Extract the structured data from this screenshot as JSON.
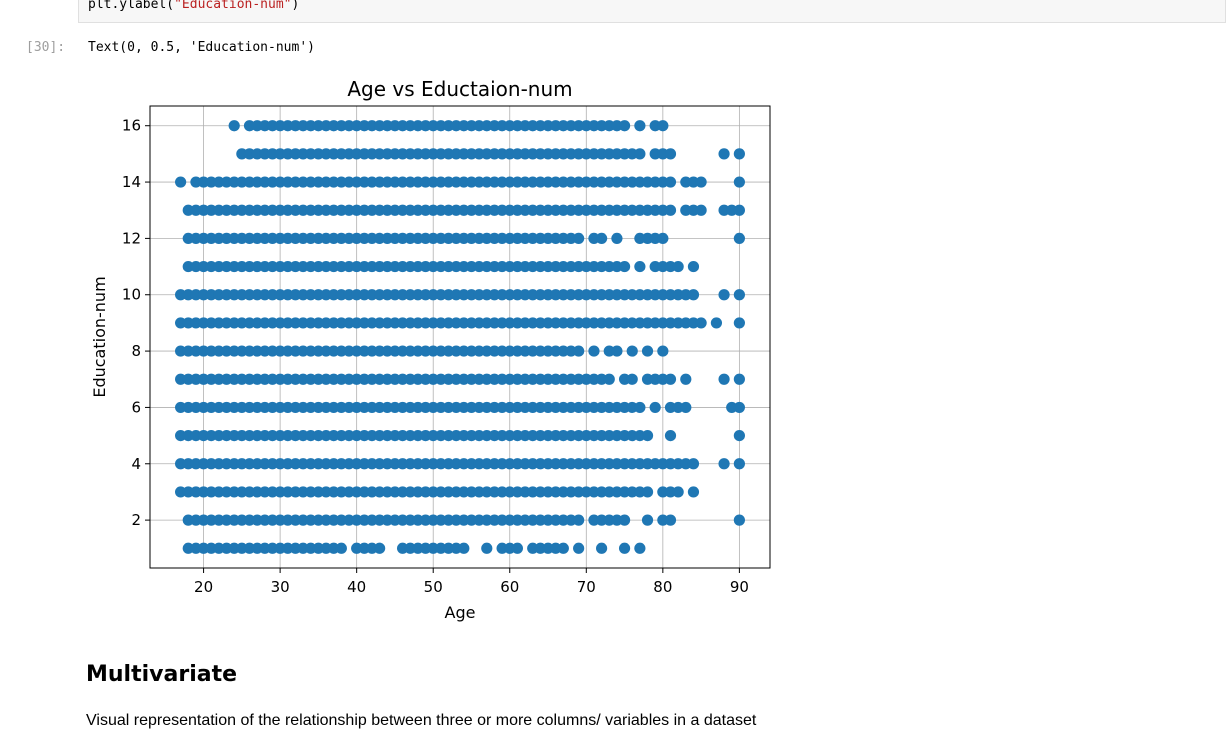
{
  "code_cell": {
    "line": {
      "prefix": "plt.ylabel(",
      "string": "\"Education-num\"",
      "suffix": ")"
    }
  },
  "output": {
    "prompt": "[30]:",
    "text": "Text(0, 0.5, 'Education-num')"
  },
  "chart_data": {
    "type": "scatter",
    "title": "Age vs Eductaion-num",
    "xlabel": "Age",
    "ylabel": "Education-num",
    "xlim": [
      13,
      94
    ],
    "ylim": [
      0.3,
      16.7
    ],
    "xticks": [
      20,
      30,
      40,
      50,
      60,
      70,
      80,
      90
    ],
    "yticks": [
      2,
      4,
      6,
      8,
      10,
      12,
      14,
      16
    ],
    "grid": true,
    "marker_color": "#1f77b4",
    "rows": [
      {
        "y": 16,
        "x": [
          24,
          26,
          27,
          28,
          29,
          30,
          31,
          32,
          33,
          34,
          35,
          36,
          37,
          38,
          39,
          40,
          41,
          42,
          43,
          44,
          45,
          46,
          47,
          48,
          49,
          50,
          51,
          52,
          53,
          54,
          55,
          56,
          57,
          58,
          59,
          60,
          61,
          62,
          63,
          64,
          65,
          66,
          67,
          68,
          69,
          70,
          71,
          72,
          73,
          74,
          75,
          77,
          79,
          80
        ]
      },
      {
        "y": 15,
        "x": [
          25,
          26,
          27,
          28,
          29,
          30,
          31,
          32,
          33,
          34,
          35,
          36,
          37,
          38,
          39,
          40,
          41,
          42,
          43,
          44,
          45,
          46,
          47,
          48,
          49,
          50,
          51,
          52,
          53,
          54,
          55,
          56,
          57,
          58,
          59,
          60,
          61,
          62,
          63,
          64,
          65,
          66,
          67,
          68,
          69,
          70,
          71,
          72,
          73,
          74,
          75,
          76,
          77,
          79,
          80,
          81,
          88,
          90
        ]
      },
      {
        "y": 14,
        "x": [
          17,
          19,
          20,
          21,
          22,
          23,
          24,
          25,
          26,
          27,
          28,
          29,
          30,
          31,
          32,
          33,
          34,
          35,
          36,
          37,
          38,
          39,
          40,
          41,
          42,
          43,
          44,
          45,
          46,
          47,
          48,
          49,
          50,
          51,
          52,
          53,
          54,
          55,
          56,
          57,
          58,
          59,
          60,
          61,
          62,
          63,
          64,
          65,
          66,
          67,
          68,
          69,
          70,
          71,
          72,
          73,
          74,
          75,
          76,
          77,
          78,
          79,
          80,
          81,
          83,
          84,
          85,
          90
        ]
      },
      {
        "y": 13,
        "x": [
          18,
          19,
          20,
          21,
          22,
          23,
          24,
          25,
          26,
          27,
          28,
          29,
          30,
          31,
          32,
          33,
          34,
          35,
          36,
          37,
          38,
          39,
          40,
          41,
          42,
          43,
          44,
          45,
          46,
          47,
          48,
          49,
          50,
          51,
          52,
          53,
          54,
          55,
          56,
          57,
          58,
          59,
          60,
          61,
          62,
          63,
          64,
          65,
          66,
          67,
          68,
          69,
          70,
          71,
          72,
          73,
          74,
          75,
          76,
          77,
          78,
          79,
          80,
          81,
          83,
          84,
          85,
          88,
          89,
          90
        ]
      },
      {
        "y": 12,
        "x": [
          18,
          19,
          20,
          21,
          22,
          23,
          24,
          25,
          26,
          27,
          28,
          29,
          30,
          31,
          32,
          33,
          34,
          35,
          36,
          37,
          38,
          39,
          40,
          41,
          42,
          43,
          44,
          45,
          46,
          47,
          48,
          49,
          50,
          51,
          52,
          53,
          54,
          55,
          56,
          57,
          58,
          59,
          60,
          61,
          62,
          63,
          64,
          65,
          66,
          67,
          68,
          69,
          71,
          72,
          74,
          77,
          78,
          79,
          80,
          90
        ]
      },
      {
        "y": 11,
        "x": [
          18,
          19,
          20,
          21,
          22,
          23,
          24,
          25,
          26,
          27,
          28,
          29,
          30,
          31,
          32,
          33,
          34,
          35,
          36,
          37,
          38,
          39,
          40,
          41,
          42,
          43,
          44,
          45,
          46,
          47,
          48,
          49,
          50,
          51,
          52,
          53,
          54,
          55,
          56,
          57,
          58,
          59,
          60,
          61,
          62,
          63,
          64,
          65,
          66,
          67,
          68,
          69,
          70,
          71,
          72,
          73,
          74,
          75,
          77,
          79,
          80,
          81,
          82,
          84
        ]
      },
      {
        "y": 10,
        "x": [
          17,
          18,
          19,
          20,
          21,
          22,
          23,
          24,
          25,
          26,
          27,
          28,
          29,
          30,
          31,
          32,
          33,
          34,
          35,
          36,
          37,
          38,
          39,
          40,
          41,
          42,
          43,
          44,
          45,
          46,
          47,
          48,
          49,
          50,
          51,
          52,
          53,
          54,
          55,
          56,
          57,
          58,
          59,
          60,
          61,
          62,
          63,
          64,
          65,
          66,
          67,
          68,
          69,
          70,
          71,
          72,
          73,
          74,
          75,
          76,
          77,
          78,
          79,
          80,
          81,
          82,
          83,
          84,
          88,
          90
        ]
      },
      {
        "y": 9,
        "x": [
          17,
          18,
          19,
          20,
          21,
          22,
          23,
          24,
          25,
          26,
          27,
          28,
          29,
          30,
          31,
          32,
          33,
          34,
          35,
          36,
          37,
          38,
          39,
          40,
          41,
          42,
          43,
          44,
          45,
          46,
          47,
          48,
          49,
          50,
          51,
          52,
          53,
          54,
          55,
          56,
          57,
          58,
          59,
          60,
          61,
          62,
          63,
          64,
          65,
          66,
          67,
          68,
          69,
          70,
          71,
          72,
          73,
          74,
          75,
          76,
          77,
          78,
          79,
          80,
          81,
          82,
          83,
          84,
          85,
          87,
          90
        ]
      },
      {
        "y": 8,
        "x": [
          17,
          18,
          19,
          20,
          21,
          22,
          23,
          24,
          25,
          26,
          27,
          28,
          29,
          30,
          31,
          32,
          33,
          34,
          35,
          36,
          37,
          38,
          39,
          40,
          41,
          42,
          43,
          44,
          45,
          46,
          47,
          48,
          49,
          50,
          51,
          52,
          53,
          54,
          55,
          56,
          57,
          58,
          59,
          60,
          61,
          62,
          63,
          64,
          65,
          66,
          67,
          68,
          69,
          71,
          73,
          74,
          76,
          78,
          80
        ]
      },
      {
        "y": 7,
        "x": [
          17,
          18,
          19,
          20,
          21,
          22,
          23,
          24,
          25,
          26,
          27,
          28,
          29,
          30,
          31,
          32,
          33,
          34,
          35,
          36,
          37,
          38,
          39,
          40,
          41,
          42,
          43,
          44,
          45,
          46,
          47,
          48,
          49,
          50,
          51,
          52,
          53,
          54,
          55,
          56,
          57,
          58,
          59,
          60,
          61,
          62,
          63,
          64,
          65,
          66,
          67,
          68,
          69,
          70,
          71,
          72,
          73,
          75,
          76,
          78,
          79,
          80,
          81,
          83,
          88,
          90
        ]
      },
      {
        "y": 6,
        "x": [
          17,
          18,
          19,
          20,
          21,
          22,
          23,
          24,
          25,
          26,
          27,
          28,
          29,
          30,
          31,
          32,
          33,
          34,
          35,
          36,
          37,
          38,
          39,
          40,
          41,
          42,
          43,
          44,
          45,
          46,
          47,
          48,
          49,
          50,
          51,
          52,
          53,
          54,
          55,
          56,
          57,
          58,
          59,
          60,
          61,
          62,
          63,
          64,
          65,
          66,
          67,
          68,
          69,
          70,
          71,
          72,
          73,
          74,
          75,
          76,
          77,
          79,
          81,
          82,
          83,
          89,
          90
        ]
      },
      {
        "y": 5,
        "x": [
          17,
          18,
          19,
          20,
          21,
          22,
          23,
          24,
          25,
          26,
          27,
          28,
          29,
          30,
          31,
          32,
          33,
          34,
          35,
          36,
          37,
          38,
          39,
          40,
          41,
          42,
          43,
          44,
          45,
          46,
          47,
          48,
          49,
          50,
          51,
          52,
          53,
          54,
          55,
          56,
          57,
          58,
          59,
          60,
          61,
          62,
          63,
          64,
          65,
          66,
          67,
          68,
          69,
          70,
          71,
          72,
          73,
          74,
          75,
          76,
          77,
          78,
          81,
          90
        ]
      },
      {
        "y": 4,
        "x": [
          17,
          18,
          19,
          20,
          21,
          22,
          23,
          24,
          25,
          26,
          27,
          28,
          29,
          30,
          31,
          32,
          33,
          34,
          35,
          36,
          37,
          38,
          39,
          40,
          41,
          42,
          43,
          44,
          45,
          46,
          47,
          48,
          49,
          50,
          51,
          52,
          53,
          54,
          55,
          56,
          57,
          58,
          59,
          60,
          61,
          62,
          63,
          64,
          65,
          66,
          67,
          68,
          69,
          70,
          71,
          72,
          73,
          74,
          75,
          76,
          77,
          78,
          79,
          80,
          81,
          82,
          83,
          84,
          88,
          90
        ]
      },
      {
        "y": 3,
        "x": [
          17,
          18,
          19,
          20,
          21,
          22,
          23,
          24,
          25,
          26,
          27,
          28,
          29,
          30,
          31,
          32,
          33,
          34,
          35,
          36,
          37,
          38,
          39,
          40,
          41,
          42,
          43,
          44,
          45,
          46,
          47,
          48,
          49,
          50,
          51,
          52,
          53,
          54,
          55,
          56,
          57,
          58,
          59,
          60,
          61,
          62,
          63,
          64,
          65,
          66,
          67,
          68,
          69,
          70,
          71,
          72,
          73,
          74,
          75,
          76,
          77,
          78,
          80,
          81,
          82,
          84
        ]
      },
      {
        "y": 2,
        "x": [
          18,
          19,
          20,
          21,
          22,
          23,
          24,
          25,
          26,
          27,
          28,
          29,
          30,
          31,
          32,
          33,
          34,
          35,
          36,
          37,
          38,
          39,
          40,
          41,
          42,
          43,
          44,
          45,
          46,
          47,
          48,
          49,
          50,
          51,
          52,
          53,
          54,
          55,
          56,
          57,
          58,
          59,
          60,
          61,
          62,
          63,
          64,
          65,
          66,
          67,
          68,
          69,
          71,
          72,
          73,
          74,
          75,
          78,
          80,
          81,
          90
        ]
      },
      {
        "y": 1,
        "x": [
          18,
          19,
          20,
          21,
          22,
          23,
          24,
          25,
          26,
          27,
          28,
          29,
          30,
          31,
          32,
          33,
          34,
          35,
          36,
          37,
          38,
          40,
          41,
          42,
          43,
          46,
          47,
          48,
          49,
          50,
          51,
          52,
          53,
          54,
          57,
          59,
          60,
          61,
          63,
          64,
          65,
          66,
          67,
          69,
          72,
          75,
          77
        ]
      }
    ]
  },
  "markdown": {
    "heading": "Multivariate",
    "paragraph": "Visual representation of the relationship between three or more columns/ variables in a dataset"
  }
}
